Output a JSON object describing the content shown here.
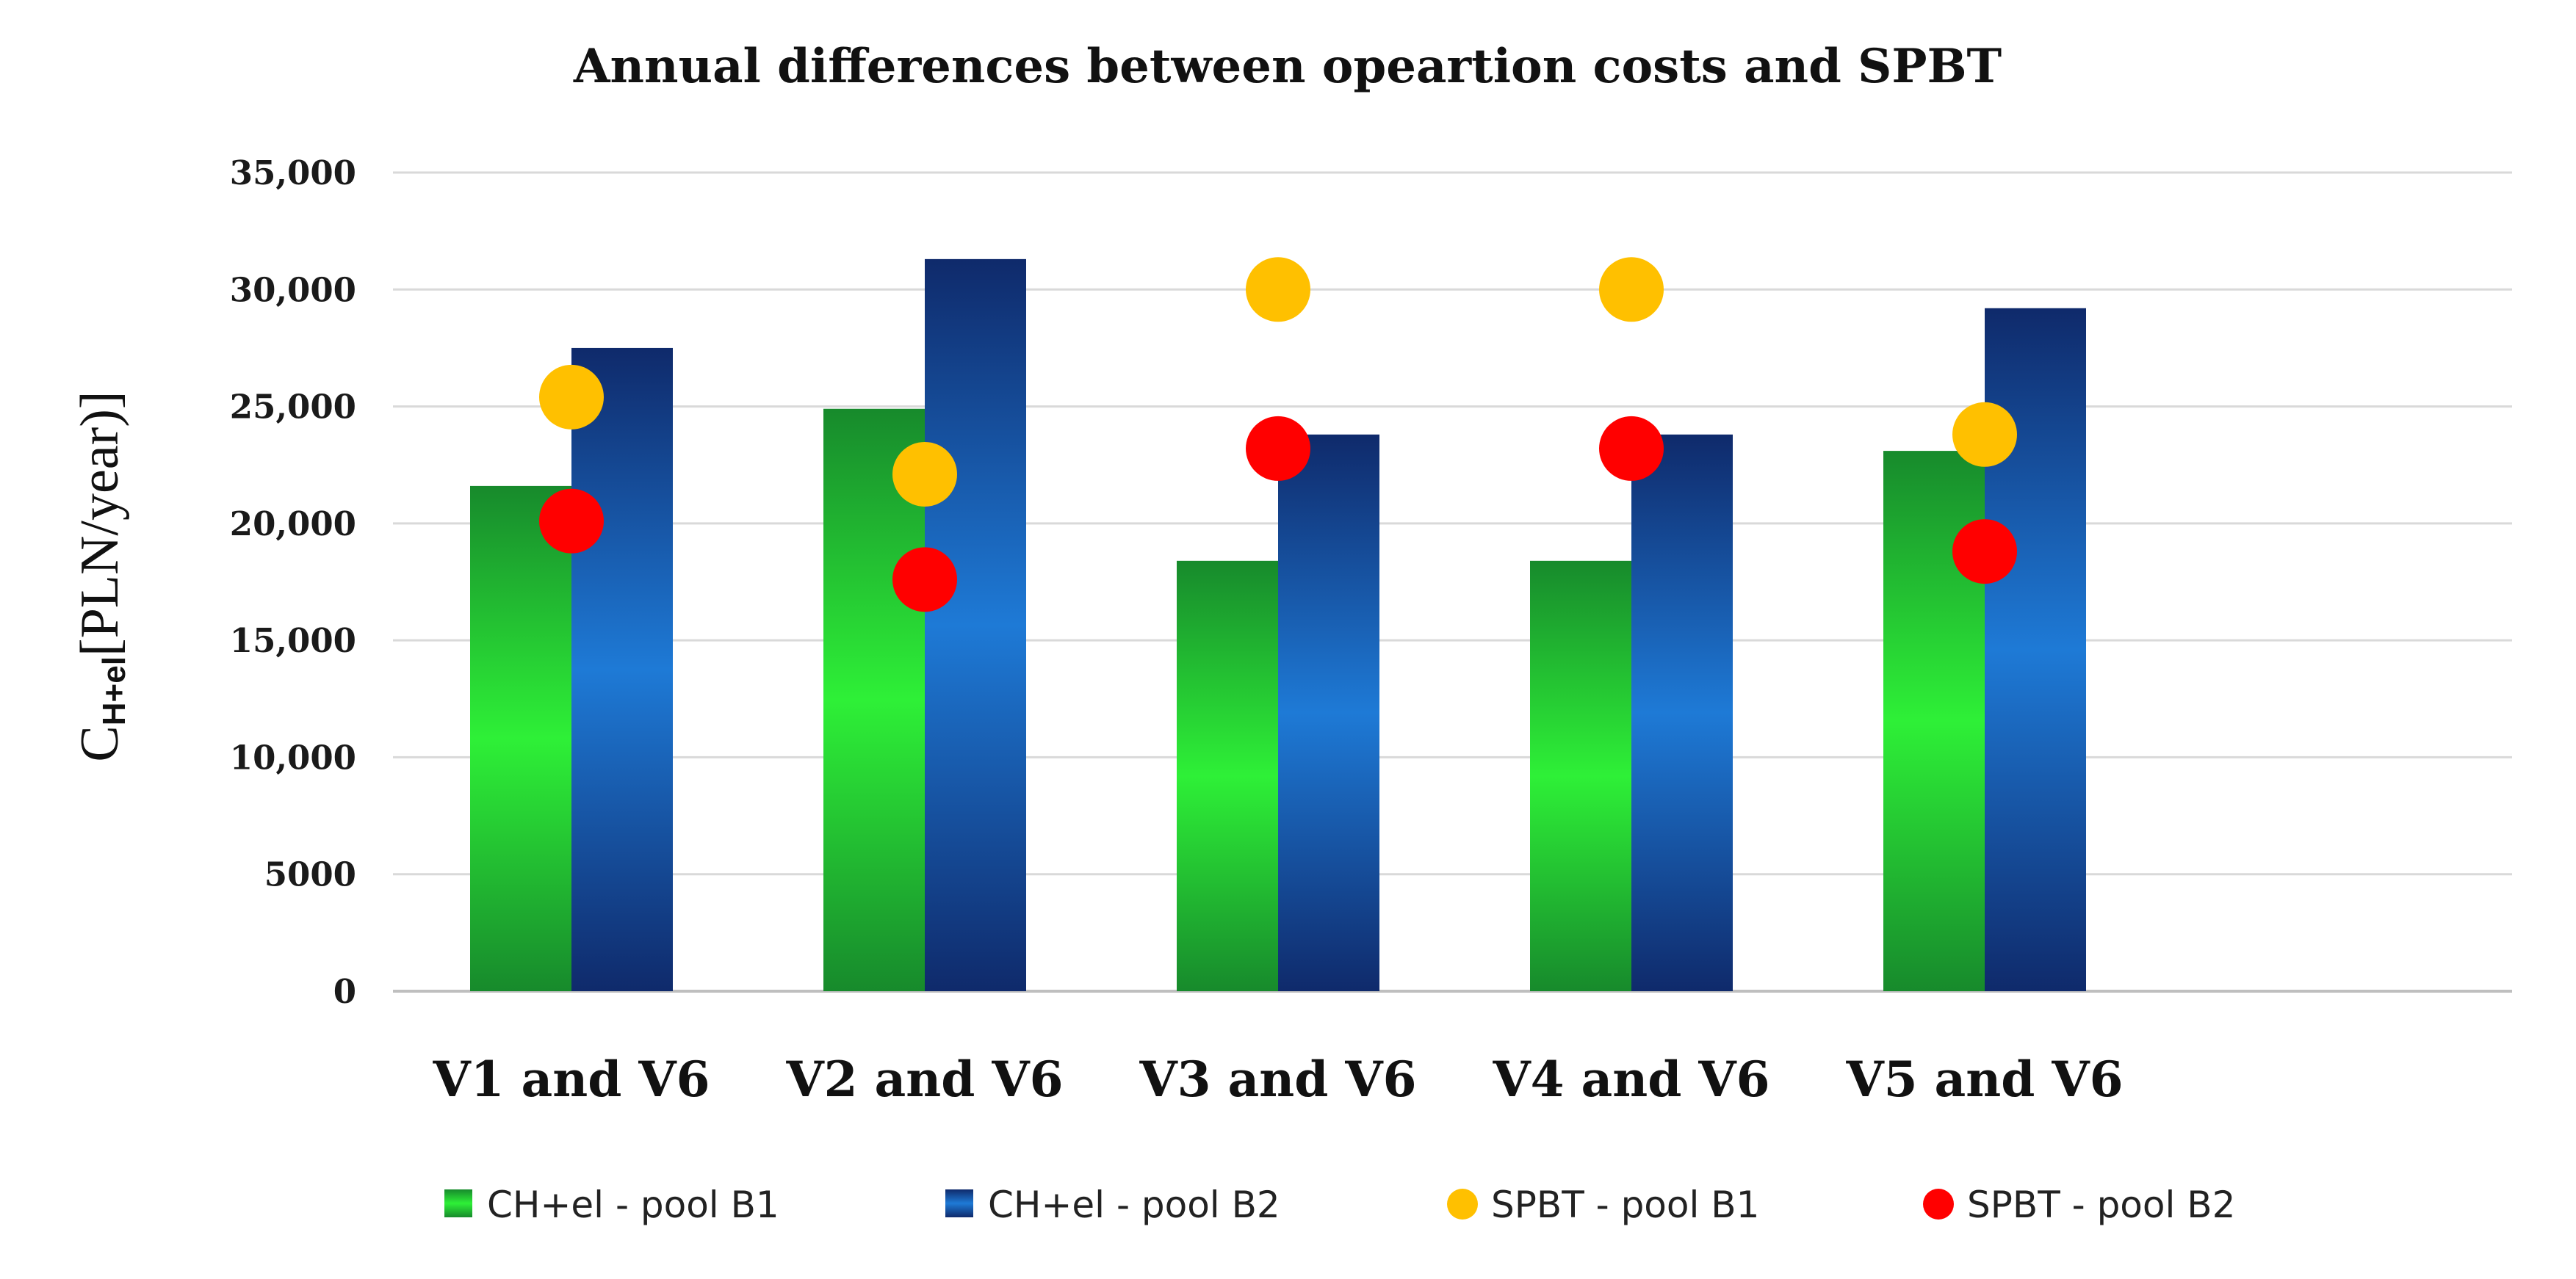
{
  "chart_data": {
    "type": "bar",
    "title": "Annual differences between opeartion costs and SPBT",
    "ylabel": {
      "main": "C",
      "sub": "H+el",
      "rest": "[PLN/year)]"
    },
    "xlabel": "",
    "ylim": [
      0,
      35000
    ],
    "ytick_values": [
      0,
      5000,
      10000,
      15000,
      20000,
      25000,
      30000,
      35000
    ],
    "ytick_labels": [
      "0",
      "5000",
      "10,000",
      "15,000",
      "20,000",
      "25,000",
      "30,000",
      "35,000"
    ],
    "grid": true,
    "legend_position": "bottom",
    "categories": [
      "V1 and V6",
      "V2 and V6",
      "V3 and V6",
      "V4 and V6",
      "V5 and V6"
    ],
    "series": [
      {
        "name": "CH+el - pool B1",
        "kind": "bar",
        "color": "#2ecc32",
        "values": [
          21600,
          24900,
          18400,
          18400,
          23100
        ]
      },
      {
        "name": "CH+el - pool B2",
        "kind": "bar",
        "color": "#1b63b8",
        "values": [
          27500,
          31300,
          23800,
          23800,
          29200
        ]
      },
      {
        "name": "SPBT - pool B1",
        "kind": "point",
        "color": "#ffc000",
        "values": [
          25400,
          22100,
          30000,
          30000,
          23800
        ]
      },
      {
        "name": "SPBT - pool B2",
        "kind": "point",
        "color": "#ff0000",
        "values": [
          20100,
          17600,
          23200,
          23200,
          18800
        ]
      }
    ]
  }
}
